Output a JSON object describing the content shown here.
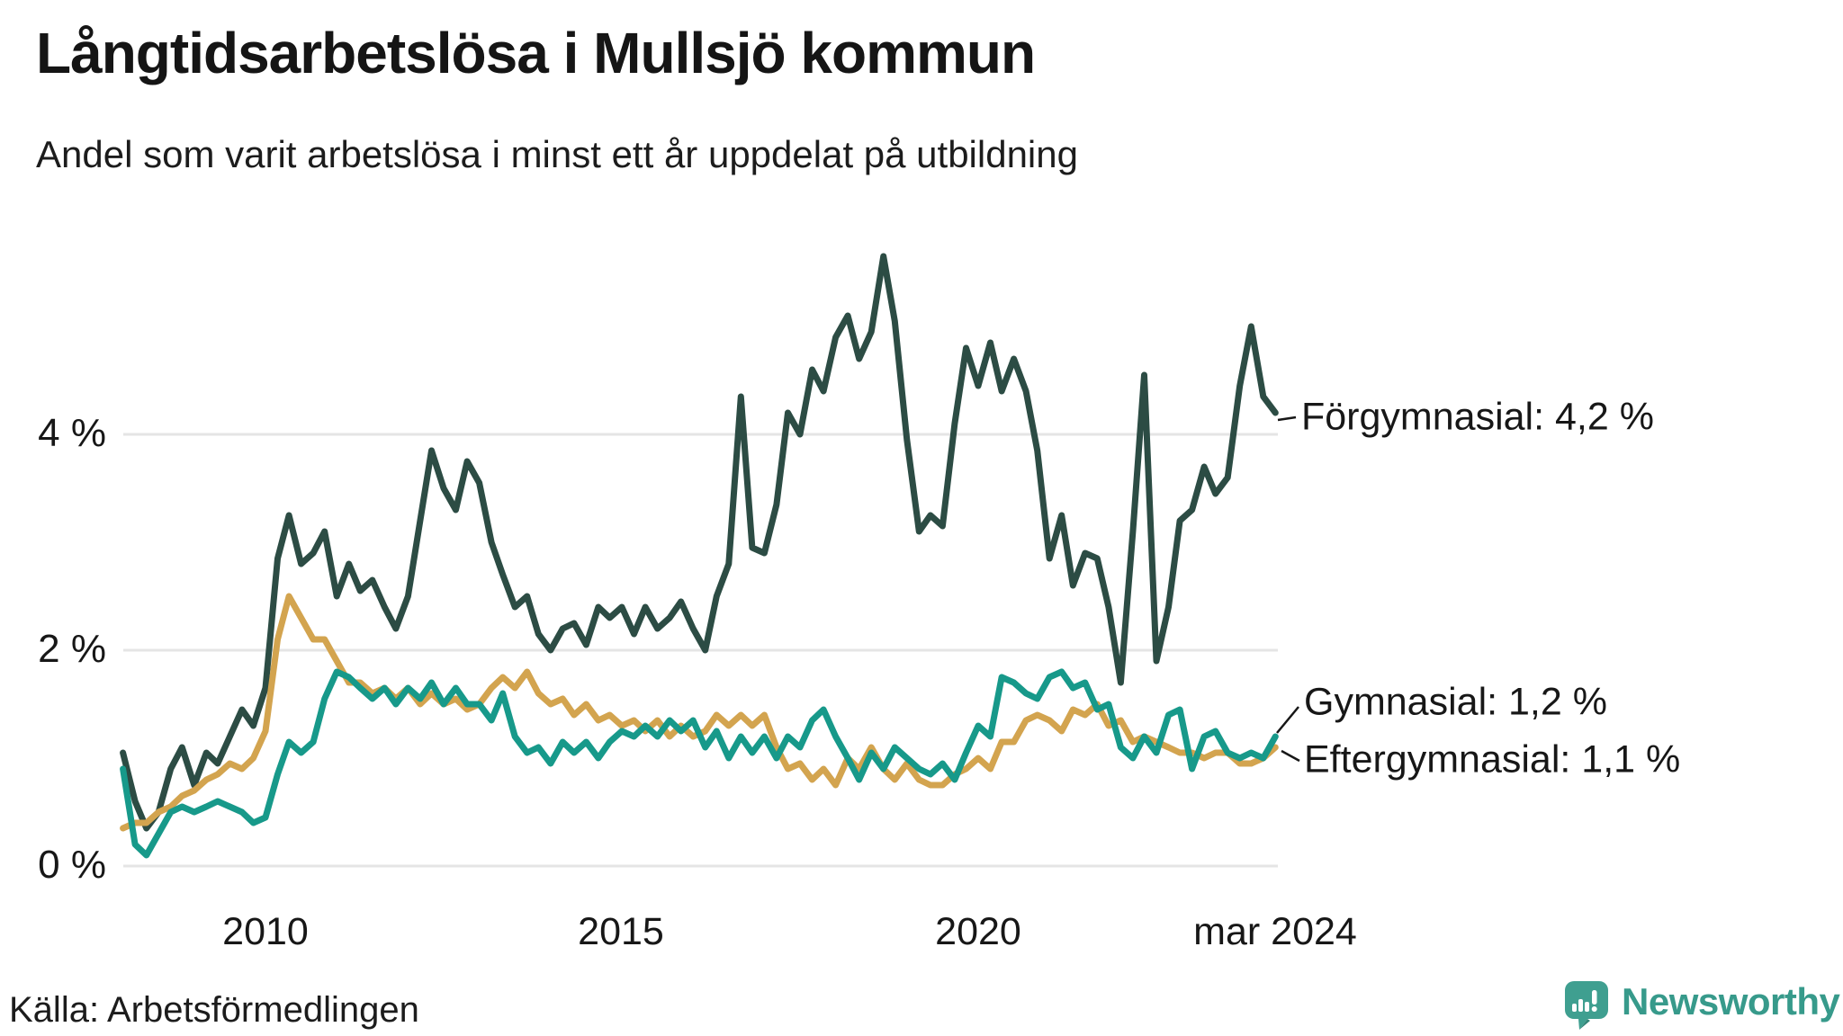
{
  "header": {
    "title": "Långtidsarbetslösa i Mullsjö kommun",
    "subtitle": "Andel som varit arbetslösa i minst ett år uppdelat på utbildning"
  },
  "footer": {
    "source_label": "Källa: Arbetsförmedlingen",
    "brand_name": "Newsworthy",
    "brand_color": "#3f9f90"
  },
  "colors": {
    "forgymnasial": "#2c4c44",
    "gymnasial": "#17998a",
    "eftergymnasial": "#d3a44f",
    "gridline": "#e5e5e5",
    "text": "#171717"
  },
  "chart_data": {
    "type": "line",
    "title": "Långtidsarbetslösa i Mullsjö kommun",
    "subtitle": "Andel som varit arbetslösa i minst ett år uppdelat på utbildning",
    "xlabel": "",
    "ylabel": "",
    "xlim": [
      2008.0,
      2024.25
    ],
    "ylim": [
      0,
      5.8
    ],
    "grid": "horizontal",
    "legend_position": "end-of-line labels, right side",
    "y_ticks": [
      {
        "label": "4 %",
        "value": 4
      },
      {
        "label": "2 %",
        "value": 2
      },
      {
        "label": "0 %",
        "value": 0
      }
    ],
    "x_ticks": [
      {
        "label": "2010",
        "year": 2010
      },
      {
        "label": "2015",
        "year": 2015
      },
      {
        "label": "2020",
        "year": 2020
      },
      {
        "label": "mar 2024",
        "year": 2024.17
      }
    ],
    "annotations": [
      {
        "label": "Förgymnasial: 4,2 %",
        "series": "Förgymnasial",
        "end_value": 4.2
      },
      {
        "label": "Gymnasial: 1,2 %",
        "series": "Gymnasial",
        "end_value": 1.2
      },
      {
        "label": "Eftergymnasial: 1,1 %",
        "series": "Eftergymnasial",
        "end_value": 1.1
      }
    ],
    "x": [
      2008.0,
      2008.17,
      2008.33,
      2008.5,
      2008.67,
      2008.83,
      2009.0,
      2009.17,
      2009.33,
      2009.5,
      2009.67,
      2009.83,
      2010.0,
      2010.17,
      2010.33,
      2010.5,
      2010.67,
      2010.83,
      2011.0,
      2011.17,
      2011.33,
      2011.5,
      2011.67,
      2011.83,
      2012.0,
      2012.17,
      2012.33,
      2012.5,
      2012.67,
      2012.83,
      2013.0,
      2013.17,
      2013.33,
      2013.5,
      2013.67,
      2013.83,
      2014.0,
      2014.17,
      2014.33,
      2014.5,
      2014.67,
      2014.83,
      2015.0,
      2015.17,
      2015.33,
      2015.5,
      2015.67,
      2015.83,
      2016.0,
      2016.17,
      2016.33,
      2016.5,
      2016.67,
      2016.83,
      2017.0,
      2017.17,
      2017.33,
      2017.5,
      2017.67,
      2017.83,
      2018.0,
      2018.17,
      2018.33,
      2018.5,
      2018.67,
      2018.83,
      2019.0,
      2019.17,
      2019.33,
      2019.5,
      2019.67,
      2019.83,
      2020.0,
      2020.17,
      2020.33,
      2020.5,
      2020.67,
      2020.83,
      2021.0,
      2021.17,
      2021.33,
      2021.5,
      2021.67,
      2021.83,
      2022.0,
      2022.17,
      2022.33,
      2022.5,
      2022.67,
      2022.83,
      2023.0,
      2023.17,
      2023.33,
      2023.5,
      2023.67,
      2023.83,
      2024.0,
      2024.17
    ],
    "series": [
      {
        "name": "Förgymnasial",
        "color": "#2c4c44",
        "values": [
          1.05,
          0.6,
          0.35,
          0.5,
          0.9,
          1.1,
          0.75,
          1.05,
          0.95,
          1.2,
          1.45,
          1.3,
          1.65,
          2.85,
          3.25,
          2.8,
          2.9,
          3.1,
          2.5,
          2.8,
          2.55,
          2.65,
          2.4,
          2.2,
          2.5,
          3.2,
          3.85,
          3.5,
          3.3,
          3.75,
          3.55,
          3.0,
          2.7,
          2.4,
          2.5,
          2.15,
          2.0,
          2.2,
          2.25,
          2.05,
          2.4,
          2.3,
          2.4,
          2.15,
          2.4,
          2.2,
          2.3,
          2.45,
          2.2,
          2.0,
          2.5,
          2.8,
          4.35,
          2.95,
          2.9,
          3.35,
          4.2,
          4.0,
          4.6,
          4.4,
          4.9,
          5.1,
          4.7,
          4.95,
          5.65,
          5.05,
          3.95,
          3.1,
          3.25,
          3.15,
          4.1,
          4.8,
          4.45,
          4.85,
          4.4,
          4.7,
          4.4,
          3.85,
          2.85,
          3.25,
          2.6,
          2.9,
          2.85,
          2.4,
          1.7,
          3.1,
          4.55,
          1.9,
          2.4,
          3.2,
          3.3,
          3.7,
          3.45,
          3.6,
          4.45,
          5.0,
          4.35,
          4.2
        ]
      },
      {
        "name": "Gymnasial",
        "color": "#17998a",
        "values": [
          0.9,
          0.2,
          0.1,
          0.3,
          0.5,
          0.55,
          0.5,
          0.55,
          0.6,
          0.55,
          0.5,
          0.4,
          0.45,
          0.85,
          1.15,
          1.05,
          1.15,
          1.55,
          1.8,
          1.75,
          1.65,
          1.55,
          1.65,
          1.5,
          1.65,
          1.55,
          1.7,
          1.5,
          1.65,
          1.5,
          1.5,
          1.35,
          1.6,
          1.2,
          1.05,
          1.1,
          0.95,
          1.15,
          1.05,
          1.15,
          1.0,
          1.15,
          1.25,
          1.2,
          1.3,
          1.2,
          1.35,
          1.25,
          1.35,
          1.1,
          1.25,
          1.0,
          1.2,
          1.05,
          1.2,
          1.0,
          1.2,
          1.1,
          1.35,
          1.45,
          1.2,
          1.0,
          0.8,
          1.05,
          0.9,
          1.1,
          1.0,
          0.9,
          0.85,
          0.95,
          0.8,
          1.05,
          1.3,
          1.2,
          1.75,
          1.7,
          1.6,
          1.55,
          1.75,
          1.8,
          1.65,
          1.7,
          1.45,
          1.5,
          1.1,
          1.0,
          1.2,
          1.05,
          1.4,
          1.45,
          0.9,
          1.2,
          1.25,
          1.05,
          1.0,
          1.05,
          1.0,
          1.2
        ]
      },
      {
        "name": "Eftergymnasial",
        "color": "#d3a44f",
        "values": [
          0.35,
          0.4,
          0.4,
          0.5,
          0.55,
          0.65,
          0.7,
          0.8,
          0.85,
          0.95,
          0.9,
          1.0,
          1.25,
          2.1,
          2.5,
          2.3,
          2.1,
          2.1,
          1.9,
          1.7,
          1.7,
          1.6,
          1.65,
          1.55,
          1.65,
          1.5,
          1.6,
          1.5,
          1.55,
          1.45,
          1.5,
          1.65,
          1.75,
          1.65,
          1.8,
          1.6,
          1.5,
          1.55,
          1.4,
          1.5,
          1.35,
          1.4,
          1.3,
          1.35,
          1.25,
          1.35,
          1.2,
          1.3,
          1.2,
          1.25,
          1.4,
          1.3,
          1.4,
          1.3,
          1.4,
          1.1,
          0.9,
          0.95,
          0.8,
          0.9,
          0.75,
          1.0,
          0.9,
          1.1,
          0.9,
          0.8,
          0.95,
          0.8,
          0.75,
          0.75,
          0.85,
          0.9,
          1.0,
          0.9,
          1.15,
          1.15,
          1.35,
          1.4,
          1.35,
          1.25,
          1.45,
          1.4,
          1.5,
          1.3,
          1.35,
          1.15,
          1.2,
          1.15,
          1.1,
          1.05,
          1.05,
          1.0,
          1.05,
          1.05,
          0.95,
          0.95,
          1.0,
          1.1
        ]
      }
    ]
  }
}
